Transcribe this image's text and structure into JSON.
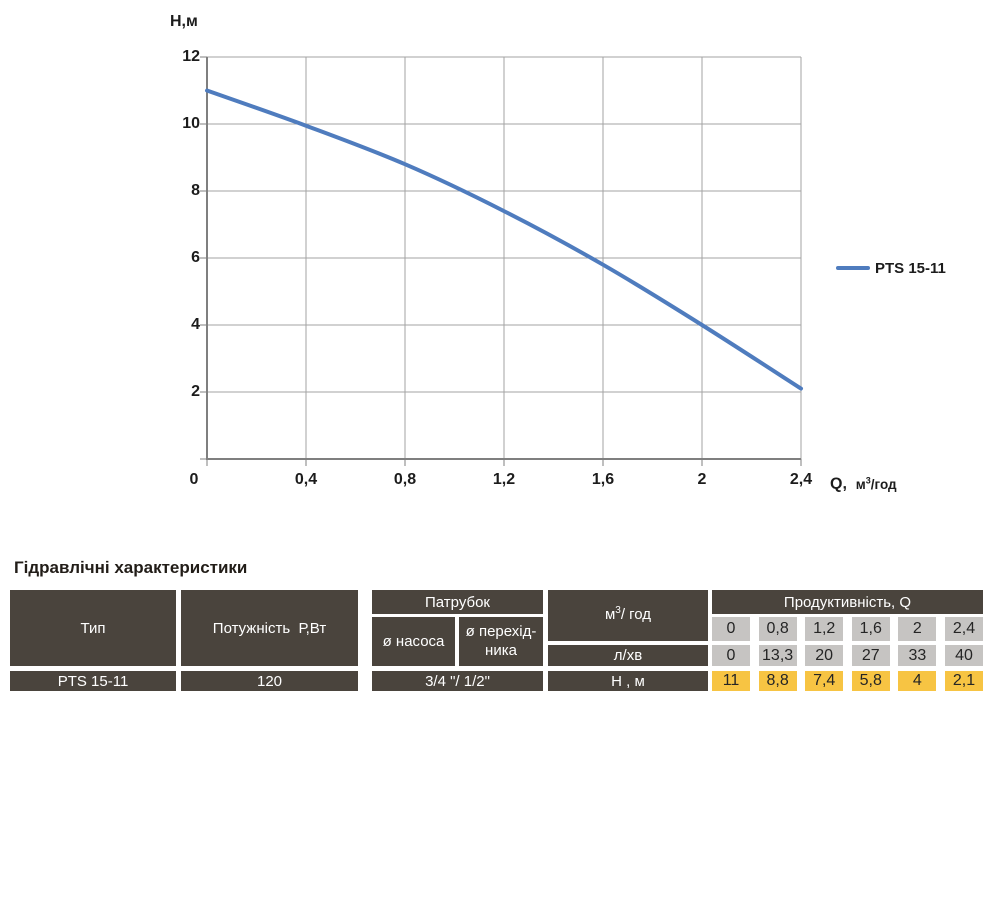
{
  "chart": {
    "ylabel": "Н,м",
    "xlabel_q": "Q,  ",
    "xlabel_unit_pre": "м",
    "xlabel_unit_sup": "3",
    "xlabel_unit_post": "/год",
    "legend_label": "PTS 15-11"
  },
  "chart_data": {
    "type": "line",
    "title": "",
    "xlabel": "Q, м³/год",
    "ylabel": "Н,м",
    "xlim": [
      0,
      2.4
    ],
    "ylim": [
      0,
      12
    ],
    "grid": true,
    "legend_position": "right",
    "x_ticks": {
      "labels": [
        "0",
        "0,4",
        "0,8",
        "1,2",
        "1,6",
        "2",
        "2,4"
      ],
      "values": [
        0,
        0.4,
        0.8,
        1.2,
        1.6,
        2,
        2.4
      ]
    },
    "y_ticks": {
      "labels": [
        "12",
        "10",
        "8",
        "6",
        "4",
        "2"
      ],
      "values": [
        12,
        10,
        8,
        6,
        4,
        2
      ]
    },
    "y_gridline_values": [
      0,
      2,
      4,
      6,
      8,
      10,
      12
    ],
    "series": [
      {
        "name": "PTS 15-11",
        "color": "#4F7CBE",
        "x": [
          0,
          0.4,
          0.8,
          1.2,
          1.6,
          2.0,
          2.4
        ],
        "y": [
          11,
          9.95,
          8.8,
          7.4,
          5.8,
          4.0,
          2.1
        ]
      }
    ],
    "colors": {
      "grid": "#a3a3a3",
      "axis": "#7f7f7f"
    }
  },
  "table": {
    "title": "Гідравлічні характеристики",
    "headers": {
      "type": "Тип",
      "power": "Потужність  Р,Вт",
      "pipe_group": "Патрубок",
      "pump_diameter": "ø насоса",
      "adapter_diameter": "ø перехід-\nника",
      "productivity_group": "Продуктивність, Q",
      "unit_flow_pre": "м",
      "unit_flow_sup": "3",
      "unit_flow_post": "/ год",
      "unit_lmin": "л/хв",
      "unit_head": "Н , м"
    },
    "row": {
      "type": "PTS 15-11",
      "power": "120",
      "pipe": "3/4 \"/ 1/2\""
    },
    "flow_m3h": [
      "0",
      "0,8",
      "1,2",
      "1,6",
      "2",
      "2,4"
    ],
    "flow_lmin": [
      "0",
      "13,3",
      "20",
      "27",
      "33",
      "40"
    ],
    "head_m": [
      "11",
      "8,8",
      "7,4",
      "5,8",
      "4",
      "2,1"
    ]
  }
}
